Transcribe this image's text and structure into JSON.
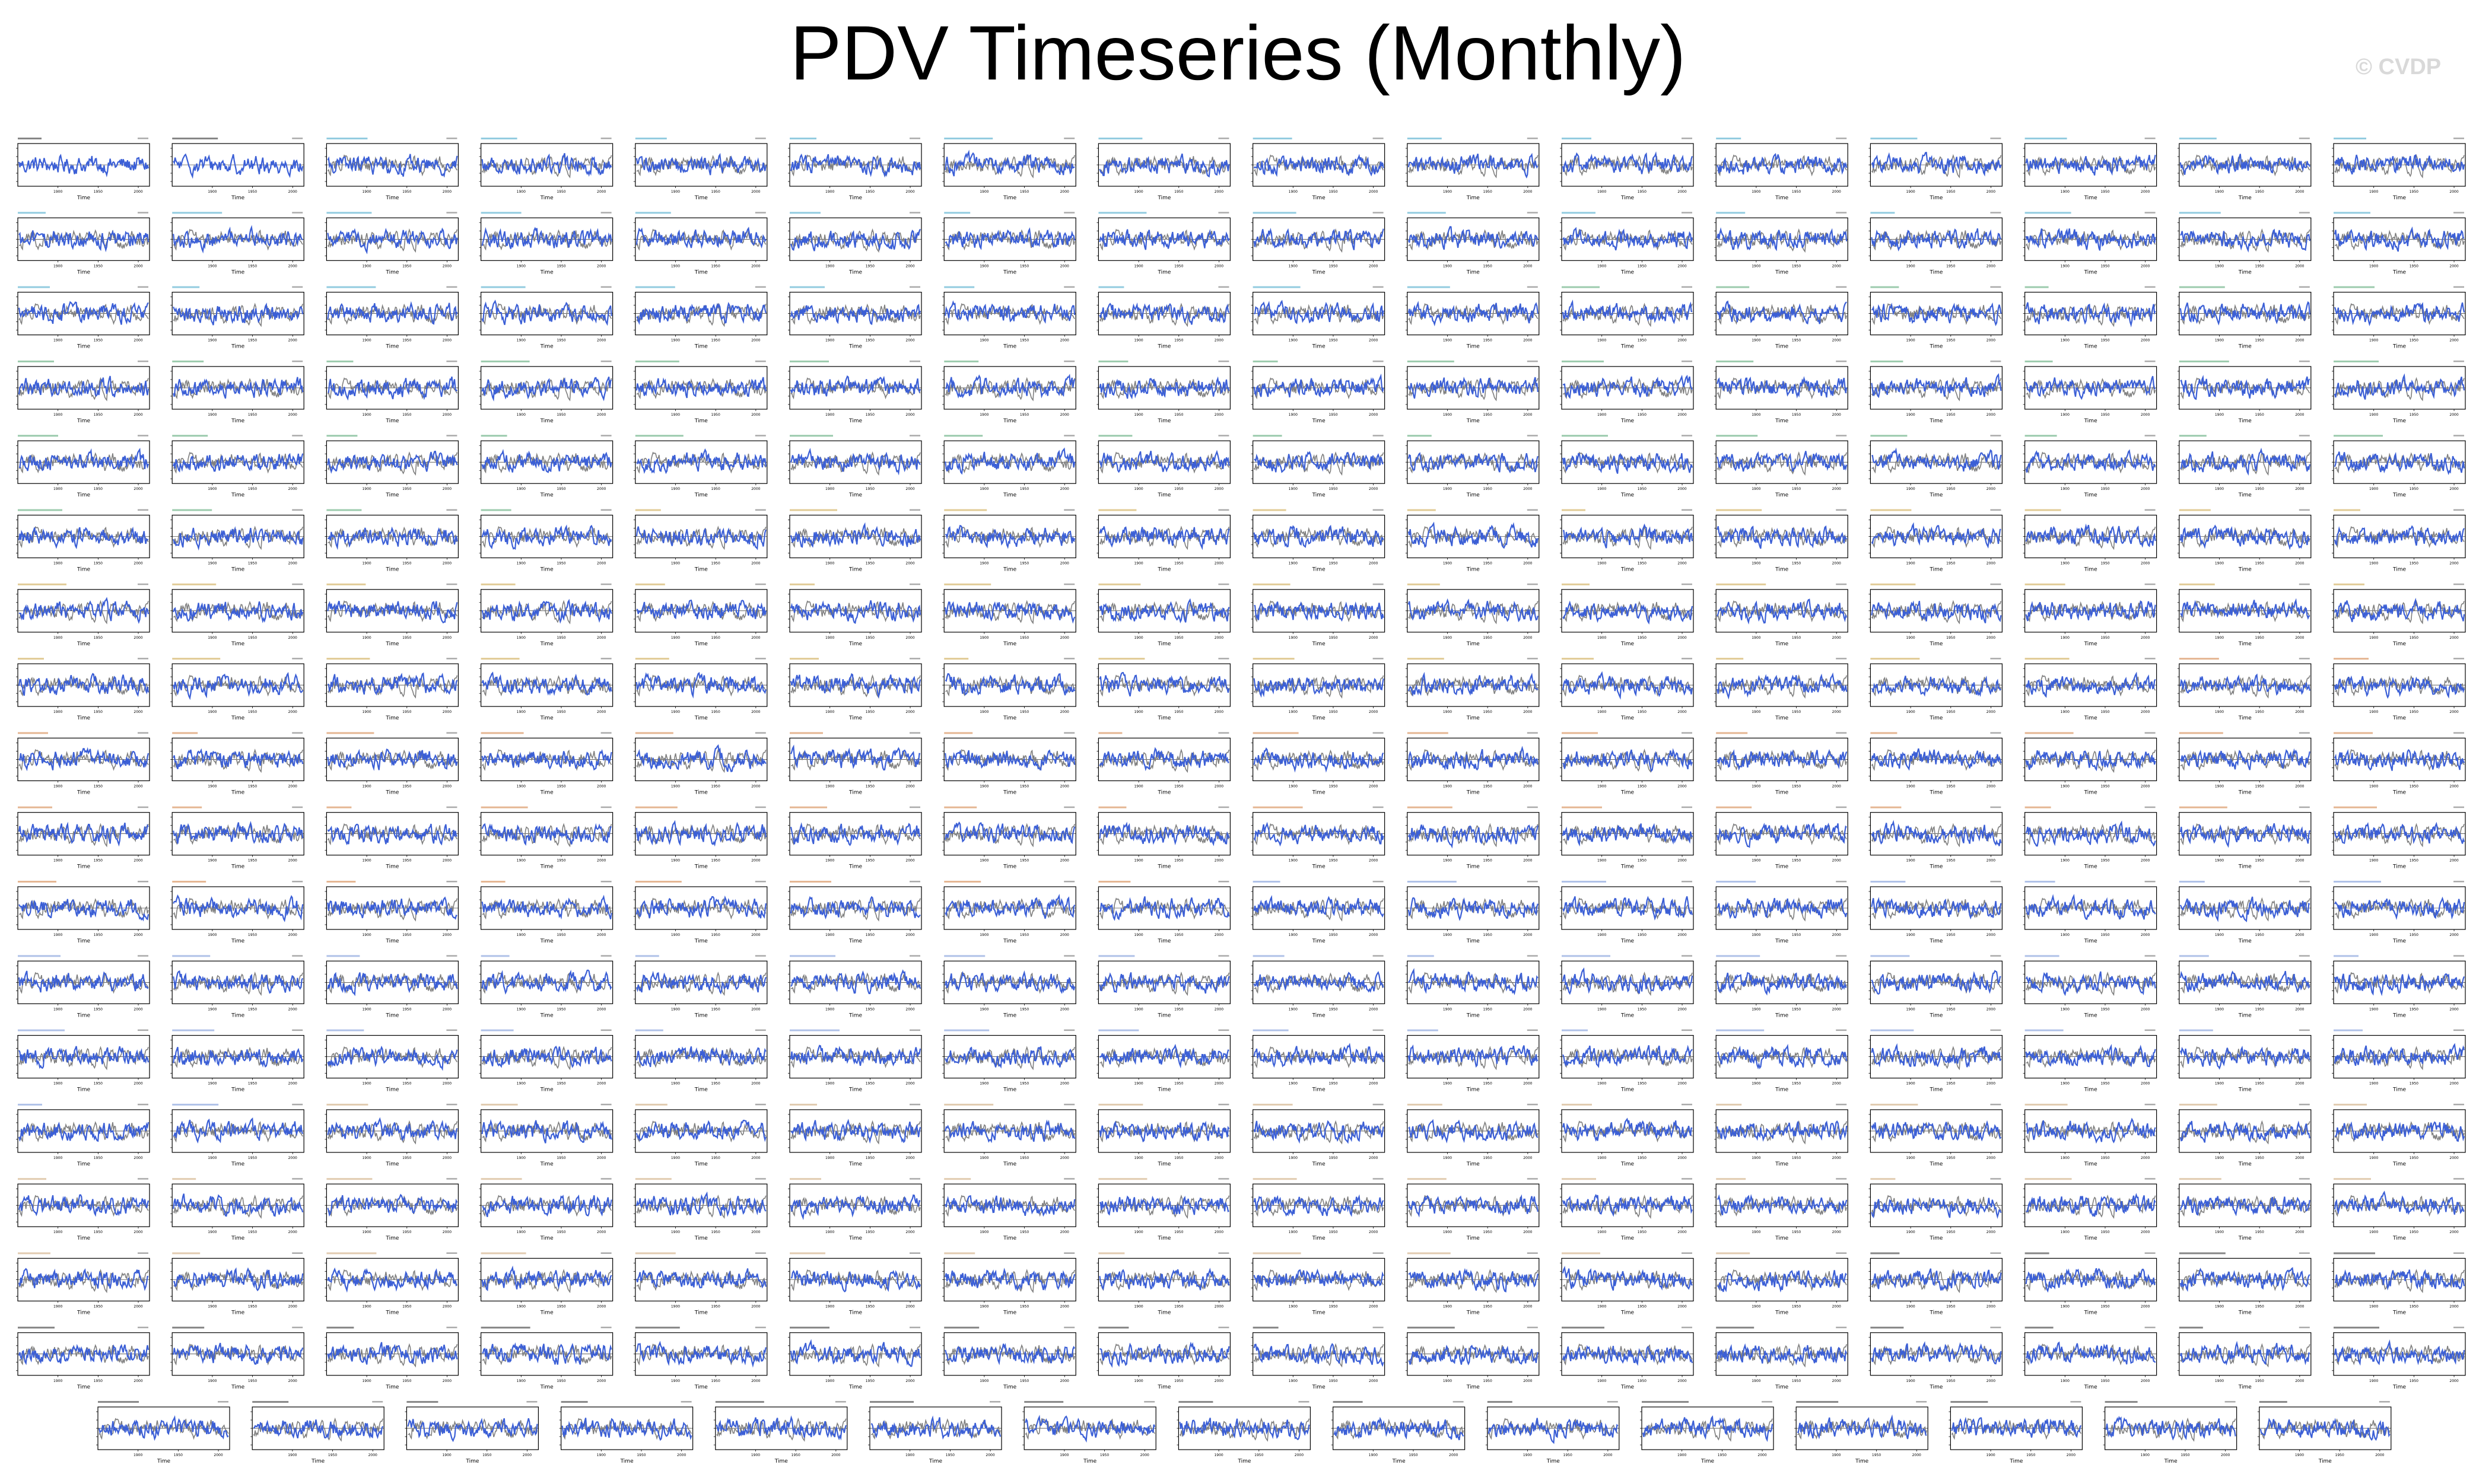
{
  "title": "PDV Timeseries (Monthly)",
  "credit": "© CVDP",
  "colors": {
    "primary_series": "#3b5fd6",
    "secondary_series": "#7f7f7f",
    "label_colors": [
      "#222222",
      "#3aa3c6",
      "#4aa06a",
      "#c8a040",
      "#d07a3a",
      "#6f8fd6",
      "#c9a070"
    ]
  },
  "chart_data": {
    "type": "line",
    "layout": "small-multiples",
    "grid": false,
    "panel_rows": 18,
    "panels_per_full_row": 16,
    "panels_last_row": 15,
    "panel_count": 287,
    "xlabel": "Time",
    "x_ticks": [
      "1900",
      "1950",
      "2000"
    ],
    "x_range": [
      1850,
      2014
    ],
    "ylim": [
      -3,
      3
    ],
    "series": [
      {
        "role": "ensemble member",
        "color": "#3b5fd6"
      },
      {
        "role": "reference",
        "color": "#7f7f7f"
      }
    ]
  }
}
